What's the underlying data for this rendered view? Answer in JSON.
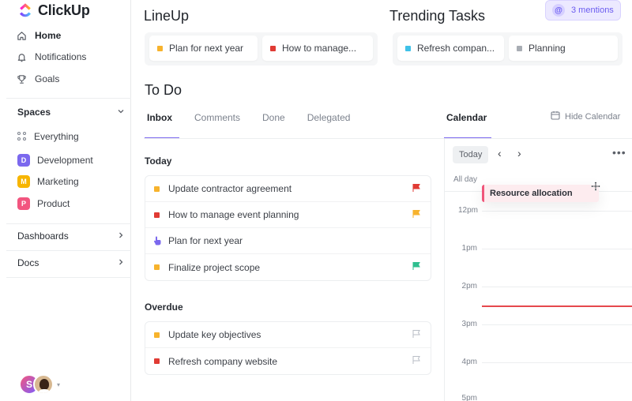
{
  "brand": {
    "name": "ClickUp"
  },
  "sidebar": {
    "nav": [
      {
        "label": "Home",
        "icon": "home-icon"
      },
      {
        "label": "Notifications",
        "icon": "bell-icon"
      },
      {
        "label": "Goals",
        "icon": "trophy-icon"
      }
    ],
    "spaces_label": "Spaces",
    "everything_label": "Everything",
    "spaces": [
      {
        "letter": "D",
        "label": "Development",
        "color": "#7b68ee"
      },
      {
        "letter": "M",
        "label": "Marketing",
        "color": "#f7b500"
      },
      {
        "letter": "P",
        "label": "Product",
        "color": "#f2557f"
      }
    ],
    "dashboards_label": "Dashboards",
    "docs_label": "Docs",
    "user_initial": "S"
  },
  "lineup": {
    "title": "LineUp",
    "items": [
      {
        "label": "Plan for next year",
        "color": "#f7b32d"
      },
      {
        "label": "How to manage...",
        "color": "#e03b34"
      }
    ]
  },
  "trending": {
    "title": "Trending Tasks",
    "items": [
      {
        "label": "Refresh compan...",
        "color": "#3fc1e8"
      },
      {
        "label": "Planning",
        "color": "#a8adb4"
      }
    ]
  },
  "mentions": {
    "label": "3 mentions",
    "symbol": "@"
  },
  "todo": {
    "title": "To Do",
    "tabs": [
      "Inbox",
      "Comments",
      "Done",
      "Delegated"
    ],
    "today_label": "Today",
    "today_tasks": [
      {
        "label": "Update contractor agreement",
        "color": "#f7b32d",
        "flag": "#e03b34"
      },
      {
        "label": "How to manage event planning",
        "color": "#e03b34",
        "flag": "#f7b32d"
      },
      {
        "label": "Plan for next year",
        "color": "#7b68ee",
        "flag": ""
      },
      {
        "label": "Finalize project scope",
        "color": "#f7b32d",
        "flag": "#2fbf8f"
      }
    ],
    "overdue_label": "Overdue",
    "overdue_tasks": [
      {
        "label": "Update key objectives",
        "color": "#f7b32d",
        "flag": "none"
      },
      {
        "label": "Refresh company website",
        "color": "#e03b34",
        "flag": "none"
      }
    ]
  },
  "calendar": {
    "tab": "Calendar",
    "hide_label": "Hide Calendar",
    "today_button": "Today",
    "prev": "‹",
    "next": "›",
    "more": "•••",
    "all_day": "All day",
    "event": "Resource allocation",
    "hours": [
      "12pm",
      "1pm",
      "2pm",
      "3pm",
      "4pm",
      "5pm"
    ]
  }
}
